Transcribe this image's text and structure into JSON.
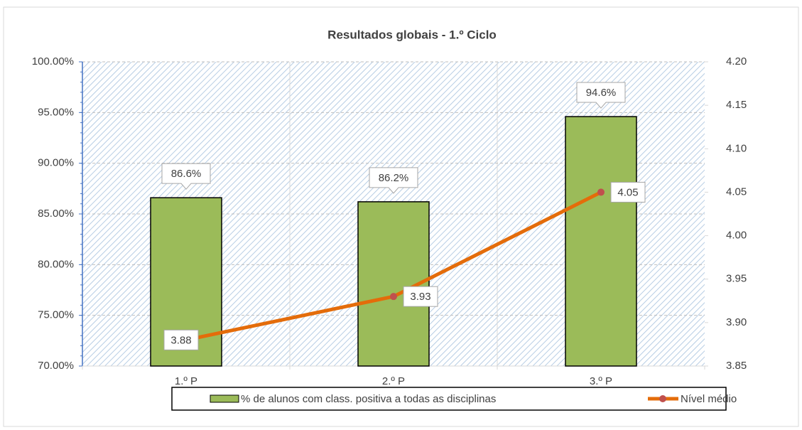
{
  "chart_data": {
    "type": "bar",
    "title": "Resultados globais - 1.º Ciclo",
    "categories": [
      "1.º P",
      "2.º P",
      "3.º P"
    ],
    "series": [
      {
        "name": "% de alunos com class. positiva a todas as disciplinas",
        "type": "bar",
        "color": "#9bbb59",
        "values": [
          86.6,
          86.2,
          94.6
        ],
        "value_labels": [
          "86.6%",
          "86.2%",
          "94.6%"
        ]
      },
      {
        "name": "Nível médio",
        "type": "line",
        "axis": "y2",
        "color": "#e46c0a",
        "marker_color": "#c0504d",
        "values": [
          3.88,
          3.93,
          4.05
        ]
      }
    ],
    "ylim": [
      70,
      100
    ],
    "yticks": [
      {
        "value": 70,
        "label": "70.00%"
      },
      {
        "value": 75,
        "label": "75.00%"
      },
      {
        "value": 80,
        "label": "80.00%"
      },
      {
        "value": 85,
        "label": "85.00%"
      },
      {
        "value": 90,
        "label": "90.00%"
      },
      {
        "value": 95,
        "label": "95.00%"
      },
      {
        "value": 100,
        "label": "100.00%"
      }
    ],
    "y2lim": [
      3.85,
      4.2
    ],
    "y2ticks": [
      {
        "value": 3.85,
        "label": "3.85"
      },
      {
        "value": 3.9,
        "label": "3.90"
      },
      3.95,
      {
        "value": 4.0,
        "label": "4.00"
      },
      4.05,
      {
        "value": 4.1,
        "label": "4.10"
      },
      4.15,
      {
        "value": 4.2,
        "label": "4.20"
      }
    ],
    "grid": true,
    "legend": "bottom"
  }
}
